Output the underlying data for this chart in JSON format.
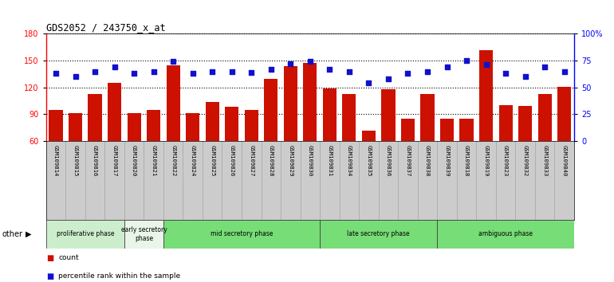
{
  "title": "GDS2052 / 243750_x_at",
  "samples": [
    "GSM109814",
    "GSM109815",
    "GSM109816",
    "GSM109817",
    "GSM109820",
    "GSM109821",
    "GSM109822",
    "GSM109824",
    "GSM109825",
    "GSM109826",
    "GSM109827",
    "GSM109828",
    "GSM109829",
    "GSM109830",
    "GSM109831",
    "GSM109834",
    "GSM109835",
    "GSM109836",
    "GSM109837",
    "GSM109838",
    "GSM109839",
    "GSM109818",
    "GSM109819",
    "GSM109823",
    "GSM109832",
    "GSM109833",
    "GSM109840"
  ],
  "counts": [
    95,
    91,
    113,
    125,
    91,
    95,
    145,
    91,
    104,
    98,
    95,
    130,
    144,
    147,
    119,
    113,
    72,
    118,
    85,
    113,
    85,
    85,
    162,
    100,
    99,
    113,
    121
  ],
  "percentiles": [
    63,
    60,
    65,
    69,
    63,
    65,
    74,
    63,
    65,
    65,
    64,
    67,
    72,
    74,
    67,
    65,
    54,
    58,
    63,
    65,
    69,
    75,
    71,
    63,
    60,
    69,
    65
  ],
  "ylim_left": [
    60,
    180
  ],
  "ylim_right": [
    0,
    100
  ],
  "yticks_left": [
    60,
    90,
    120,
    150,
    180
  ],
  "yticks_right": [
    0,
    25,
    50,
    75,
    100
  ],
  "yticklabels_right": [
    "0",
    "25",
    "50",
    "75",
    "100%"
  ],
  "bar_color": "#cc1100",
  "dot_color": "#1111cc",
  "phases": [
    {
      "label": "proliferative phase",
      "start": 0,
      "end": 4,
      "color": "#cceecc"
    },
    {
      "label": "early secretory\nphase",
      "start": 4,
      "end": 6,
      "color": "#e8f5e8"
    },
    {
      "label": "mid secretory phase",
      "start": 6,
      "end": 14,
      "color": "#77dd77"
    },
    {
      "label": "late secretory phase",
      "start": 14,
      "end": 20,
      "color": "#77dd77"
    },
    {
      "label": "ambiguous phase",
      "start": 20,
      "end": 27,
      "color": "#77dd77"
    }
  ],
  "other_label": "other",
  "legend_count": "count",
  "legend_percentile": "percentile rank within the sample",
  "bg_color": "#cccccc",
  "plot_bg": "#ffffff"
}
